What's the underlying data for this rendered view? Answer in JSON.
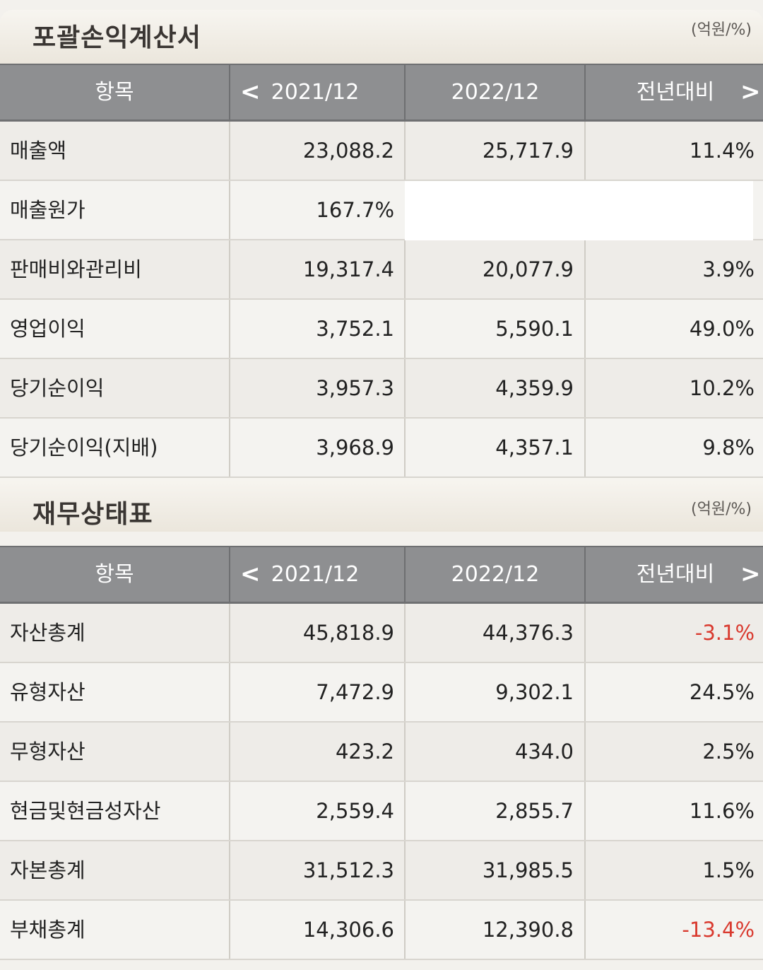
{
  "income": {
    "title": "포괄손익계산서",
    "unit": "(억원/%)",
    "headers": {
      "item": "항목",
      "col1": "2021/12",
      "col2": "2022/12",
      "col3": "전년대비",
      "prev": "<",
      "next": ">"
    },
    "rows": [
      {
        "label": "매출액",
        "v1": "23,088.2",
        "v2": "25,717.9",
        "v3": "11.4%"
      },
      {
        "label": "매출원가",
        "v1": "167.7%",
        "v2": "",
        "v3": ""
      },
      {
        "label": "판매비와관리비",
        "v1": "19,317.4",
        "v2": "20,077.9",
        "v3": "3.9%"
      },
      {
        "label": "영업이익",
        "v1": "3,752.1",
        "v2": "5,590.1",
        "v3": "49.0%"
      },
      {
        "label": "당기순이익",
        "v1": "3,957.3",
        "v2": "4,359.9",
        "v3": "10.2%"
      },
      {
        "label": "당기순이익(지배)",
        "v1": "3,968.9",
        "v2": "4,357.1",
        "v3": "9.8%"
      }
    ]
  },
  "balance": {
    "title": "재무상태표",
    "unit": "(억원/%)",
    "headers": {
      "item": "항목",
      "col1": "2021/12",
      "col2": "2022/12",
      "col3": "전년대비",
      "prev": "<",
      "next": ">"
    },
    "rows": [
      {
        "label": "자산총계",
        "v1": "45,818.9",
        "v2": "44,376.3",
        "v3": "-3.1%"
      },
      {
        "label": "유형자산",
        "v1": "7,472.9",
        "v2": "9,302.1",
        "v3": "24.5%"
      },
      {
        "label": "무형자산",
        "v1": "423.2",
        "v2": "434.0",
        "v3": "2.5%"
      },
      {
        "label": "현금및현금성자산",
        "v1": "2,559.4",
        "v2": "2,855.7",
        "v3": "11.6%"
      },
      {
        "label": "자본총계",
        "v1": "31,512.3",
        "v2": "31,985.5",
        "v3": "1.5%"
      },
      {
        "label": "부채총계",
        "v1": "14,306.6",
        "v2": "12,390.8",
        "v3": "-13.4%"
      }
    ]
  },
  "colors": {
    "negative": "#d93a2f",
    "header_bg": "#8e8f91"
  }
}
